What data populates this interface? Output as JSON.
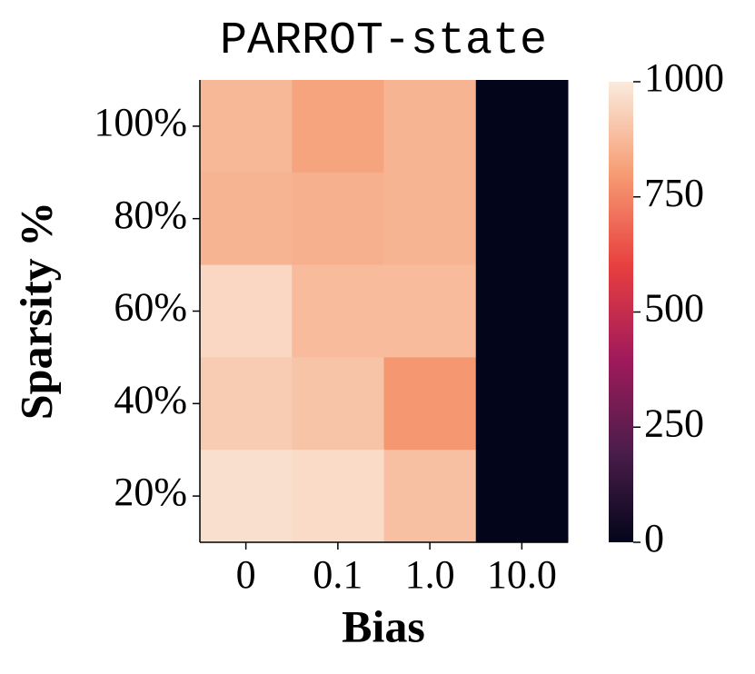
{
  "chart_data": {
    "type": "heatmap",
    "title": "PARROT-state",
    "x_label": "Bias",
    "y_label": "Sparsity %",
    "x_categories": [
      "0",
      "0.1",
      "1.0",
      "10.0"
    ],
    "y_categories": [
      "100%",
      "80%",
      "60%",
      "40%",
      "20%"
    ],
    "values": [
      [
        870,
        820,
        860,
        0
      ],
      [
        860,
        850,
        860,
        0
      ],
      [
        950,
        880,
        880,
        0
      ],
      [
        920,
        900,
        790,
        0
      ],
      [
        970,
        960,
        890,
        0
      ]
    ],
    "colormap": [
      "#03051a",
      "#4c1d4b",
      "#a11a5b",
      "#e83f3f",
      "#f69c73",
      "#faebdd"
    ],
    "zlim": [
      0,
      1000
    ],
    "zticks": [
      0,
      250,
      500,
      750,
      1000
    ]
  }
}
